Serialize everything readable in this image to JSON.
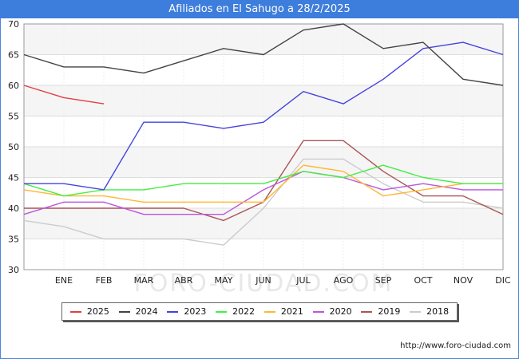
{
  "title": "Afiliados en El Sahugo a 28/2/2025",
  "source": "http://www.foro-ciudad.com",
  "watermark": "FORO-CIUDAD.COM",
  "chart_data": {
    "type": "line",
    "title": "Afiliados en El Sahugo a 28/2/2025",
    "categories": [
      "",
      "ENE",
      "FEB",
      "MAR",
      "ABR",
      "MAY",
      "JUN",
      "JUL",
      "AGO",
      "SEP",
      "OCT",
      "NOV",
      "DIC"
    ],
    "ylim": [
      30,
      70
    ],
    "yticks": [
      30,
      35,
      40,
      45,
      50,
      55,
      60,
      65,
      70
    ],
    "grid": true,
    "legend_position": "bottom",
    "series": [
      {
        "name": "2025",
        "color": "#e04040",
        "values": [
          60,
          58,
          57,
          null,
          null,
          null,
          null,
          null,
          null,
          null,
          null,
          null,
          null
        ]
      },
      {
        "name": "2024",
        "color": "#444444",
        "values": [
          65,
          63,
          63,
          62,
          64,
          66,
          65,
          69,
          70,
          66,
          67,
          61,
          60
        ]
      },
      {
        "name": "2023",
        "color": "#4444dd",
        "values": [
          44,
          44,
          43,
          54,
          54,
          53,
          54,
          59,
          57,
          61,
          66,
          67,
          65
        ]
      },
      {
        "name": "2022",
        "color": "#44ee44",
        "values": [
          44,
          42,
          43,
          43,
          44,
          44,
          44,
          46,
          45,
          47,
          45,
          44,
          44
        ]
      },
      {
        "name": "2021",
        "color": "#ffb733",
        "values": [
          43,
          42,
          42,
          41,
          41,
          41,
          41,
          47,
          46,
          42,
          43,
          44,
          44
        ]
      },
      {
        "name": "2020",
        "color": "#bb55dd",
        "values": [
          39,
          41,
          41,
          39,
          39,
          39,
          43,
          46,
          45,
          43,
          44,
          43,
          43
        ]
      },
      {
        "name": "2019",
        "color": "#aa5555",
        "values": [
          40,
          40,
          40,
          40,
          40,
          38,
          41,
          51,
          51,
          46,
          42,
          42,
          39
        ]
      },
      {
        "name": "2018",
        "color": "#cccccc",
        "values": [
          38,
          37,
          35,
          35,
          35,
          34,
          40,
          48,
          48,
          44,
          41,
          41,
          40
        ]
      }
    ]
  }
}
